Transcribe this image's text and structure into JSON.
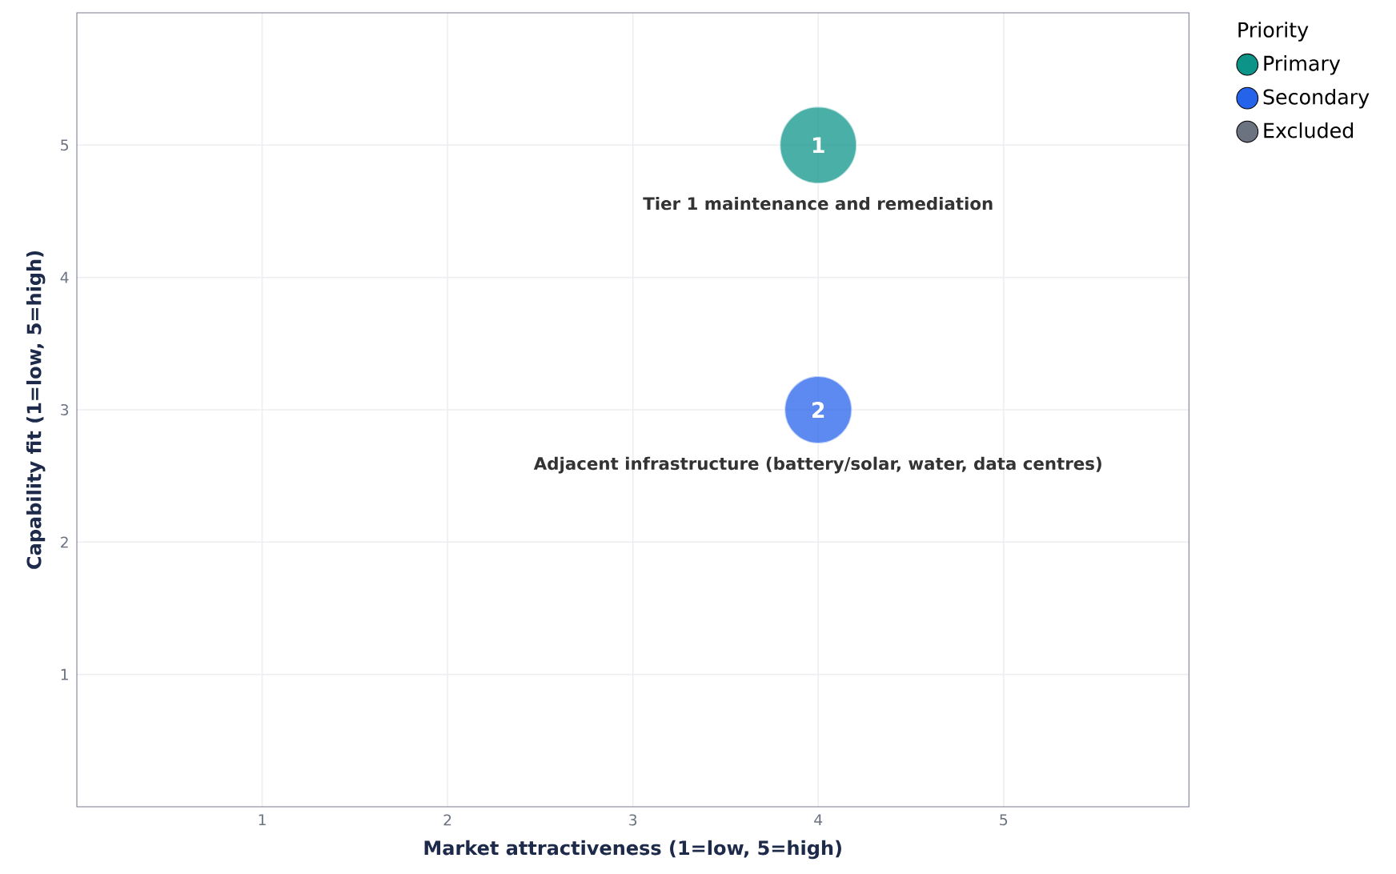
{
  "chart_data": {
    "type": "bubble",
    "xlabel": "Market attractiveness (1=low, 5=high)",
    "ylabel": "Capability fit (1=low, 5=high)",
    "legend_title": "Priority",
    "xlim": [
      0,
      6
    ],
    "ylim": [
      0,
      6
    ],
    "xticks": [
      1,
      2,
      3,
      4,
      5
    ],
    "yticks": [
      1,
      2,
      3,
      4,
      5
    ],
    "grid": true,
    "legend": "top right",
    "series": [
      {
        "name": "Primary",
        "color": "#0d9488",
        "x": [
          4
        ],
        "values": [
          5
        ],
        "sizes": [
          1
        ]
      },
      {
        "name": "Secondary",
        "color": "#2563eb",
        "x": [
          4
        ],
        "values": [
          3
        ],
        "sizes": [
          0.77
        ]
      },
      {
        "name": "Excluded",
        "color": "#6b7280"
      }
    ],
    "annotations": [
      {
        "text": "1",
        "x": 4,
        "y": 5
      },
      "Tier 1 maintenance and remediation",
      {
        "text": "2",
        "x": 4,
        "y": 3
      },
      "Adjacent infrastructure (battery/solar, water, data centres)"
    ]
  }
}
